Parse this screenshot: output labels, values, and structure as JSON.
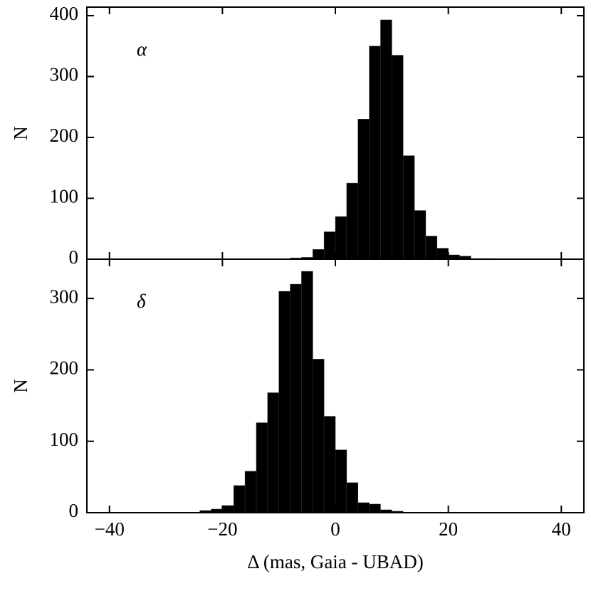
{
  "chart_data": [
    {
      "type": "histogram",
      "annotation": "α",
      "ylabel": "N",
      "bins": [
        -8,
        -6,
        -4,
        -2,
        0,
        2,
        4,
        6,
        8,
        10,
        12,
        14,
        16,
        18,
        20,
        22,
        24,
        26,
        28
      ],
      "values": [
        2,
        3,
        16,
        45,
        70,
        125,
        230,
        350,
        393,
        335,
        170,
        80,
        38,
        18,
        7,
        5,
        1,
        1
      ],
      "color": "#000000",
      "xlim": [
        -44,
        44
      ],
      "ylim": [
        0,
        414
      ],
      "yticks": [
        0,
        100,
        200,
        300,
        400
      ]
    },
    {
      "type": "histogram",
      "annotation": "δ",
      "ylabel": "N",
      "xlabel": "Δ (mas, Gaia - UBAD)",
      "bins": [
        -24,
        -22,
        -20,
        -18,
        -16,
        -14,
        -12,
        -10,
        -8,
        -6,
        -4,
        -2,
        0,
        2,
        4,
        6,
        8,
        10,
        12
      ],
      "values": [
        3,
        5,
        10,
        38,
        58,
        126,
        168,
        310,
        320,
        338,
        215,
        135,
        88,
        42,
        14,
        12,
        4,
        2
      ],
      "color": "#000000",
      "xlim": [
        -44,
        44
      ],
      "ylim": [
        0,
        355
      ],
      "yticks": [
        0,
        100,
        200,
        300
      ],
      "xticks": [
        {
          "value": -40,
          "label": "−40"
        },
        {
          "value": -20,
          "label": "−20"
        },
        0,
        20,
        40
      ]
    }
  ]
}
